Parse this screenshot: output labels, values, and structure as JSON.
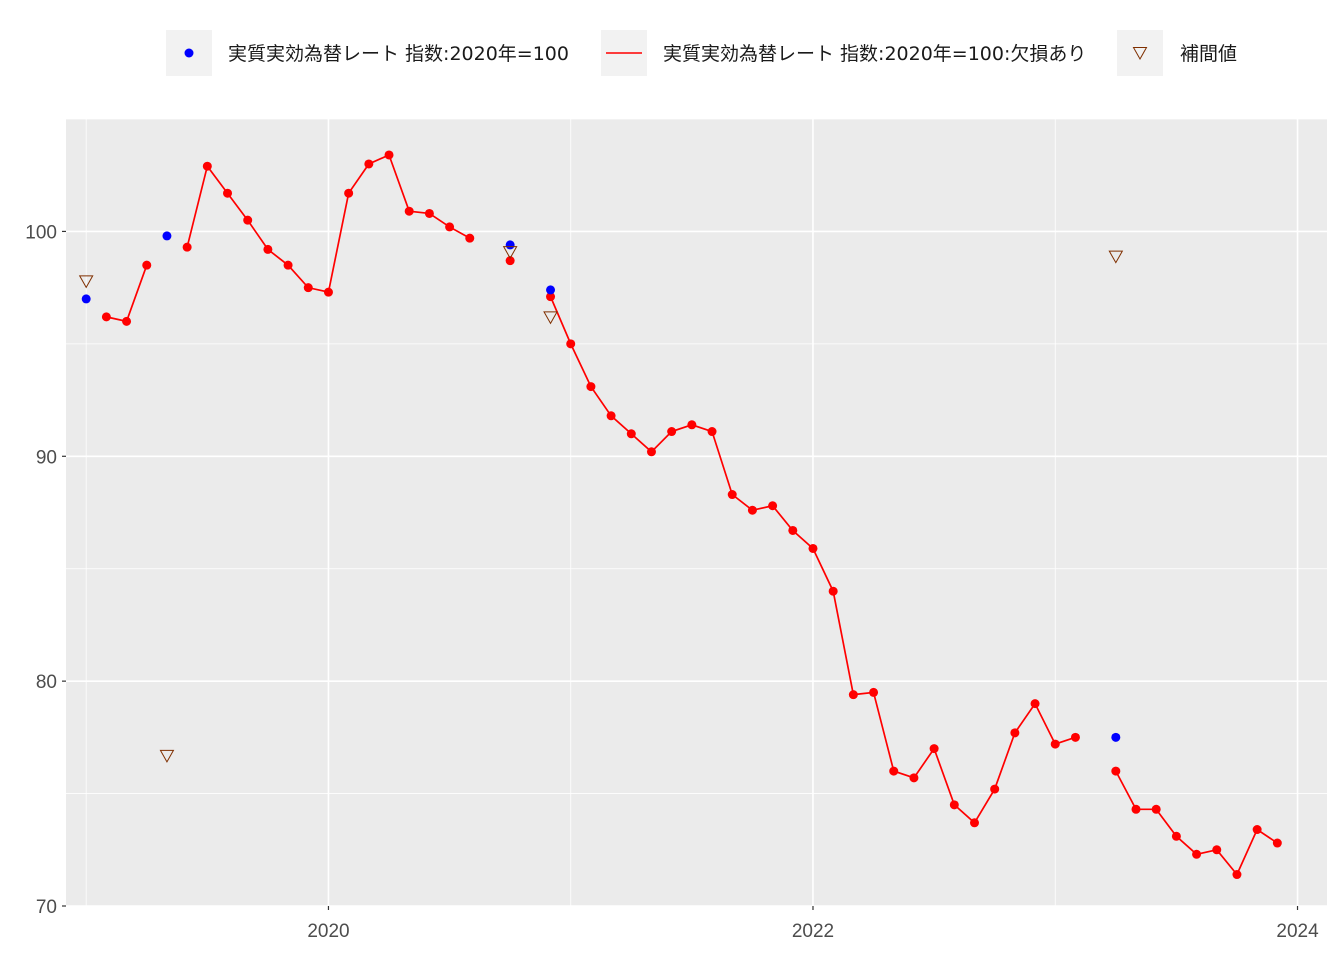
{
  "chart_data": {
    "type": "line",
    "title": "",
    "xlabel": "",
    "ylabel": "",
    "x_ticks": [
      {
        "label": "2020",
        "t": 2020.0
      },
      {
        "label": "2022",
        "t": 2022.0
      },
      {
        "label": "2024",
        "t": 2024.0
      }
    ],
    "y_ticks": [
      70,
      80,
      90,
      100
    ],
    "xlim": [
      "2018-12-01",
      "2024-02-15"
    ],
    "ylim": [
      70,
      105
    ],
    "grid": true,
    "legend_position": "top",
    "series": [
      {
        "name": "実質実効為替レート 指数:2020年=100",
        "kind": "points",
        "color": "#0000ff",
        "x": [
          "2019-01",
          "2019-05",
          "2020-10",
          "2020-12",
          "2023-04"
        ],
        "y": [
          97.0,
          99.8,
          99.4,
          97.4,
          77.5
        ]
      },
      {
        "name": "実質実効為替レート 指数:2020年=100:欠損あり",
        "kind": "line+points",
        "color": "#ff0000",
        "x": [
          "2019-01",
          "2019-02",
          "2019-03",
          "2019-04",
          "2019-05",
          "2019-06",
          "2019-07",
          "2019-08",
          "2019-09",
          "2019-10",
          "2019-11",
          "2019-12",
          "2020-01",
          "2020-02",
          "2020-03",
          "2020-04",
          "2020-05",
          "2020-06",
          "2020-07",
          "2020-08",
          "2020-09",
          "2020-10",
          "2020-11",
          "2020-12",
          "2021-01",
          "2021-02",
          "2021-03",
          "2021-04",
          "2021-05",
          "2021-06",
          "2021-07",
          "2021-08",
          "2021-09",
          "2021-10",
          "2021-11",
          "2021-12",
          "2022-01",
          "2022-02",
          "2022-03",
          "2022-04",
          "2022-05",
          "2022-06",
          "2022-07",
          "2022-08",
          "2022-09",
          "2022-10",
          "2022-11",
          "2022-12",
          "2023-01",
          "2023-02",
          "2023-03",
          "2023-04",
          "2023-05",
          "2023-06",
          "2023-07",
          "2023-08",
          "2023-09",
          "2023-10",
          "2023-11",
          "2023-12",
          "2024-01"
        ],
        "y": [
          null,
          96.2,
          96.0,
          98.5,
          null,
          99.3,
          102.9,
          101.7,
          100.5,
          99.2,
          98.5,
          97.5,
          97.3,
          101.7,
          103.0,
          103.4,
          100.9,
          100.8,
          100.2,
          99.7,
          null,
          98.7,
          null,
          97.1,
          95.0,
          93.1,
          91.8,
          91.0,
          90.2,
          91.1,
          91.4,
          91.1,
          88.3,
          87.6,
          87.8,
          86.7,
          85.9,
          84.0,
          79.4,
          79.5,
          76.0,
          75.7,
          77.0,
          74.5,
          73.7,
          75.2,
          77.7,
          79.0,
          77.2,
          77.5,
          null,
          76.0,
          74.3,
          74.3,
          73.1,
          72.3,
          72.5,
          71.4,
          73.4,
          72.8,
          null
        ]
      },
      {
        "name": "補間値",
        "kind": "points",
        "marker": "triangle-down-open",
        "color": "#7f2f00",
        "x": [
          "2019-01",
          "2019-05",
          "2020-10",
          "2020-12",
          "2023-04"
        ],
        "y": [
          97.8,
          76.7,
          99.1,
          96.2,
          98.9
        ]
      }
    ]
  }
}
